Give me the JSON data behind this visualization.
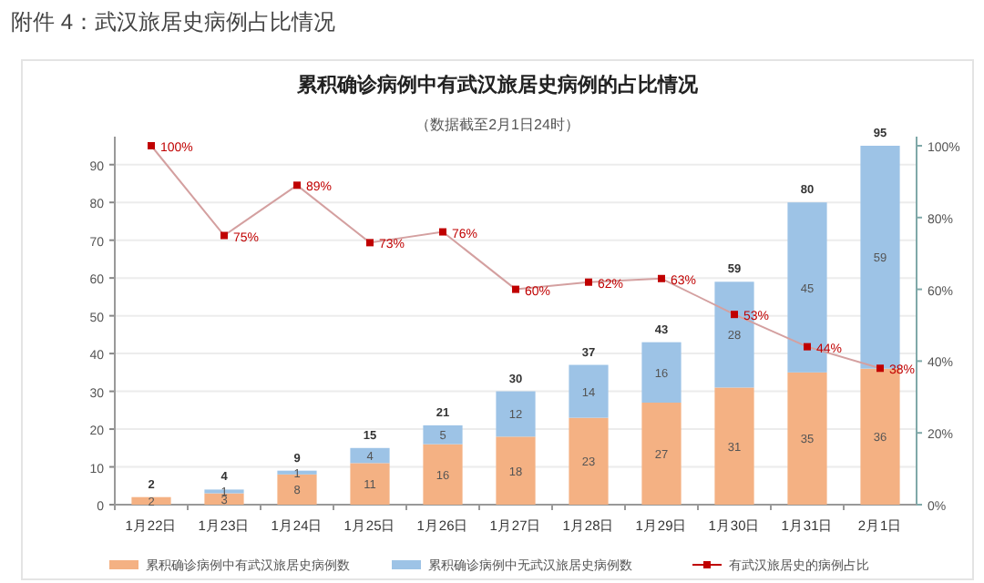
{
  "chart_data": {
    "type": "bar",
    "stacked": true,
    "title": "累积确诊病例中有武汉旅居史病例的占比情况",
    "subtitle": "（数据截至2月1日24时）",
    "annotations": [
      "附件 4：武汉旅居史病例占比情况"
    ],
    "categories": [
      "1月22日",
      "1月23日",
      "1月24日",
      "1月25日",
      "1月26日",
      "1月27日",
      "1月28日",
      "1月29日",
      "1月30日",
      "1月31日",
      "2月1日"
    ],
    "series": [
      {
        "name": "累积确诊病例中有武汉旅居史病例数",
        "color": "#f4b183",
        "values": [
          2,
          3,
          8,
          11,
          16,
          18,
          23,
          27,
          31,
          35,
          36
        ],
        "value_labels": [
          "2",
          "3",
          "8",
          "11",
          "16",
          "18",
          "23",
          "27",
          "31",
          "35",
          "36"
        ]
      },
      {
        "name": "累积确诊病例中无武汉旅居史病例数",
        "color": "#9dc3e6",
        "values": [
          null,
          1,
          1,
          4,
          5,
          12,
          14,
          16,
          28,
          45,
          59
        ],
        "value_labels": [
          null,
          "1",
          "1",
          "4",
          "5",
          "12",
          "14",
          "16",
          "28",
          "45",
          "59"
        ]
      },
      {
        "name": "有武汉旅居史的病例占比",
        "type": "line",
        "axis": "y2",
        "color": "#c00000",
        "marker": "square",
        "values": [
          100,
          75,
          89,
          73,
          76,
          60,
          62,
          63,
          53,
          44,
          38
        ],
        "value_labels": [
          "100%",
          "75%",
          "89%",
          "73%",
          "76%",
          "60%",
          "62%",
          "63%",
          "53%",
          "44%",
          "38%"
        ]
      }
    ],
    "totals": [
      "2",
      "4",
      "9",
      "15",
      "21",
      "30",
      "37",
      "43",
      "59",
      "80",
      "95"
    ],
    "ylim": [
      0,
      95
    ],
    "yticks": [
      0,
      10,
      20,
      30,
      40,
      50,
      60,
      70,
      80,
      90
    ],
    "y2lim": [
      0,
      100
    ],
    "y2ticks": [
      {
        "value": 0,
        "label": "0%"
      },
      {
        "value": 20,
        "label": "20%"
      },
      {
        "value": 40,
        "label": "40%"
      },
      {
        "value": 60,
        "label": "60%"
      },
      {
        "value": 80,
        "label": "80%"
      },
      {
        "value": 100,
        "label": "100%"
      }
    ],
    "grid": "y",
    "legend": "bottom"
  }
}
